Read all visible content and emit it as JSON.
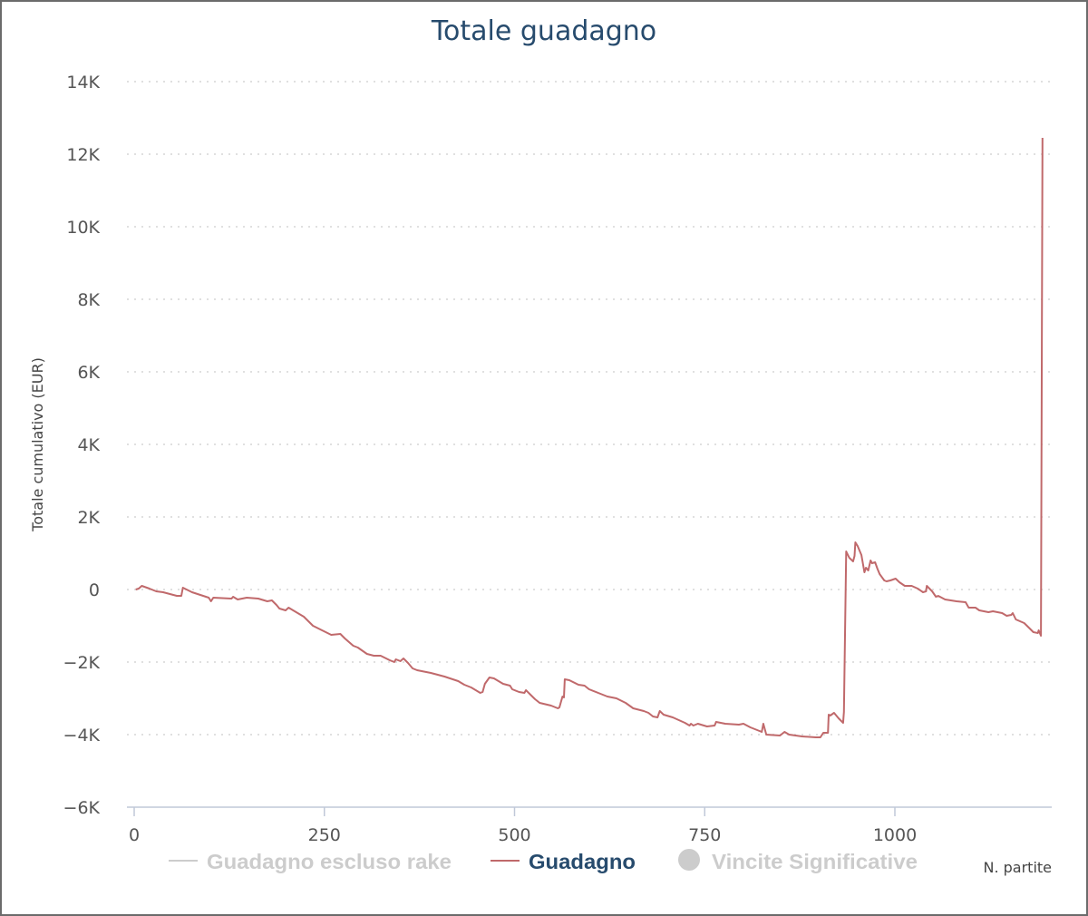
{
  "chart_data": {
    "type": "line",
    "title": "Totale guadagno",
    "xlabel": "N. partite",
    "ylabel": "Totale cumulativo (EUR)",
    "xlim": [
      0,
      1200
    ],
    "ylim": [
      -6000,
      14000
    ],
    "x_ticks": [
      0,
      250,
      500,
      750,
      1000
    ],
    "x_tick_labels": [
      "0",
      "250",
      "500",
      "750",
      "1000"
    ],
    "y_ticks": [
      -6000,
      -4000,
      -2000,
      0,
      2000,
      4000,
      6000,
      8000,
      10000,
      12000,
      14000
    ],
    "y_tick_labels": [
      "−6K",
      "−4K",
      "−2K",
      "0",
      "2K",
      "4K",
      "6K",
      "8K",
      "10K",
      "12K",
      "14K"
    ],
    "grid": true,
    "legend_position": "bottom",
    "legend": [
      {
        "name": "Guadagno escluso rake",
        "marker": "line",
        "active": false,
        "color": "#cccccc"
      },
      {
        "name": "Guadagno",
        "marker": "line",
        "active": true,
        "color": "#c0696b"
      },
      {
        "name": "Vincite Significative",
        "marker": "circle",
        "active": false,
        "color": "#cccccc"
      }
    ],
    "series": [
      {
        "name": "Guadagno",
        "color": "#c0696b",
        "points": [
          [
            2,
            0
          ],
          [
            6,
            25
          ],
          [
            10,
            100
          ],
          [
            20,
            25
          ],
          [
            29,
            -50
          ],
          [
            38,
            -75
          ],
          [
            56,
            -175
          ],
          [
            62,
            -175
          ],
          [
            64,
            50
          ],
          [
            76,
            -75
          ],
          [
            98,
            -225
          ],
          [
            101,
            -325
          ],
          [
            104,
            -225
          ],
          [
            128,
            -250
          ],
          [
            130,
            -200
          ],
          [
            136,
            -275
          ],
          [
            148,
            -225
          ],
          [
            163,
            -250
          ],
          [
            175,
            -325
          ],
          [
            181,
            -300
          ],
          [
            187,
            -425
          ],
          [
            191,
            -525
          ],
          [
            199,
            -575
          ],
          [
            203,
            -500
          ],
          [
            211,
            -600
          ],
          [
            223,
            -750
          ],
          [
            235,
            -1000
          ],
          [
            247,
            -1125
          ],
          [
            259,
            -1250
          ],
          [
            271,
            -1225
          ],
          [
            277,
            -1350
          ],
          [
            288,
            -1550
          ],
          [
            294,
            -1600
          ],
          [
            306,
            -1775
          ],
          [
            315,
            -1825
          ],
          [
            324,
            -1825
          ],
          [
            336,
            -1950
          ],
          [
            342,
            -2000
          ],
          [
            344,
            -1925
          ],
          [
            350,
            -1975
          ],
          [
            354,
            -1900
          ],
          [
            360,
            -2025
          ],
          [
            366,
            -2175
          ],
          [
            372,
            -2225
          ],
          [
            390,
            -2300
          ],
          [
            399,
            -2350
          ],
          [
            408,
            -2400
          ],
          [
            426,
            -2525
          ],
          [
            434,
            -2625
          ],
          [
            443,
            -2700
          ],
          [
            455,
            -2850
          ],
          [
            458,
            -2825
          ],
          [
            461,
            -2600
          ],
          [
            467,
            -2425
          ],
          [
            473,
            -2450
          ],
          [
            485,
            -2600
          ],
          [
            494,
            -2650
          ],
          [
            497,
            -2750
          ],
          [
            506,
            -2825
          ],
          [
            513,
            -2850
          ],
          [
            515,
            -2775
          ],
          [
            521,
            -2900
          ],
          [
            527,
            -3025
          ],
          [
            533,
            -3125
          ],
          [
            548,
            -3200
          ],
          [
            557,
            -3275
          ],
          [
            559,
            -3250
          ],
          [
            563,
            -2950
          ],
          [
            565,
            -2975
          ],
          [
            566,
            -2475
          ],
          [
            572,
            -2500
          ],
          [
            584,
            -2625
          ],
          [
            592,
            -2650
          ],
          [
            598,
            -2750
          ],
          [
            613,
            -2875
          ],
          [
            622,
            -2950
          ],
          [
            634,
            -3000
          ],
          [
            646,
            -3125
          ],
          [
            656,
            -3275
          ],
          [
            670,
            -3350
          ],
          [
            676,
            -3400
          ],
          [
            682,
            -3500
          ],
          [
            688,
            -3525
          ],
          [
            691,
            -3350
          ],
          [
            696,
            -3450
          ],
          [
            708,
            -3525
          ],
          [
            724,
            -3675
          ],
          [
            730,
            -3750
          ],
          [
            732,
            -3700
          ],
          [
            735,
            -3750
          ],
          [
            741,
            -3700
          ],
          [
            753,
            -3775
          ],
          [
            763,
            -3750
          ],
          [
            765,
            -3650
          ],
          [
            771,
            -3675
          ],
          [
            777,
            -3700
          ],
          [
            795,
            -3725
          ],
          [
            801,
            -3700
          ],
          [
            810,
            -3800
          ],
          [
            825,
            -3925
          ],
          [
            827,
            -3700
          ],
          [
            831,
            -4000
          ],
          [
            849,
            -4025
          ],
          [
            855,
            -3925
          ],
          [
            861,
            -4000
          ],
          [
            878,
            -4050
          ],
          [
            896,
            -4075
          ],
          [
            902,
            -4075
          ],
          [
            906,
            -3950
          ],
          [
            912,
            -3950
          ],
          [
            913,
            -3450
          ],
          [
            915,
            -3475
          ],
          [
            920,
            -3400
          ],
          [
            926,
            -3550
          ],
          [
            932,
            -3675
          ],
          [
            933,
            -3375
          ],
          [
            936,
            1050
          ],
          [
            940,
            875
          ],
          [
            945,
            775
          ],
          [
            947,
            925
          ],
          [
            948,
            1300
          ],
          [
            951,
            1200
          ],
          [
            956,
            950
          ],
          [
            960,
            475
          ],
          [
            962,
            600
          ],
          [
            965,
            525
          ],
          [
            968,
            800
          ],
          [
            970,
            725
          ],
          [
            974,
            750
          ],
          [
            977,
            575
          ],
          [
            980,
            425
          ],
          [
            986,
            250
          ],
          [
            989,
            225
          ],
          [
            994,
            250
          ],
          [
            1001,
            300
          ],
          [
            1006,
            200
          ],
          [
            1013,
            100
          ],
          [
            1022,
            100
          ],
          [
            1030,
            25
          ],
          [
            1037,
            -75
          ],
          [
            1041,
            -50
          ],
          [
            1042,
            100
          ],
          [
            1049,
            -50
          ],
          [
            1054,
            -200
          ],
          [
            1057,
            -175
          ],
          [
            1066,
            -275
          ],
          [
            1081,
            -325
          ],
          [
            1093,
            -350
          ],
          [
            1097,
            -500
          ],
          [
            1106,
            -500
          ],
          [
            1111,
            -575
          ],
          [
            1123,
            -625
          ],
          [
            1129,
            -600
          ],
          [
            1141,
            -650
          ],
          [
            1147,
            -725
          ],
          [
            1153,
            -700
          ],
          [
            1155,
            -650
          ],
          [
            1159,
            -825
          ],
          [
            1170,
            -925
          ],
          [
            1176,
            -1050
          ],
          [
            1182,
            -1175
          ],
          [
            1188,
            -1200
          ],
          [
            1189,
            -1125
          ],
          [
            1192,
            -1275
          ],
          [
            1194,
            12450
          ]
        ]
      }
    ]
  }
}
